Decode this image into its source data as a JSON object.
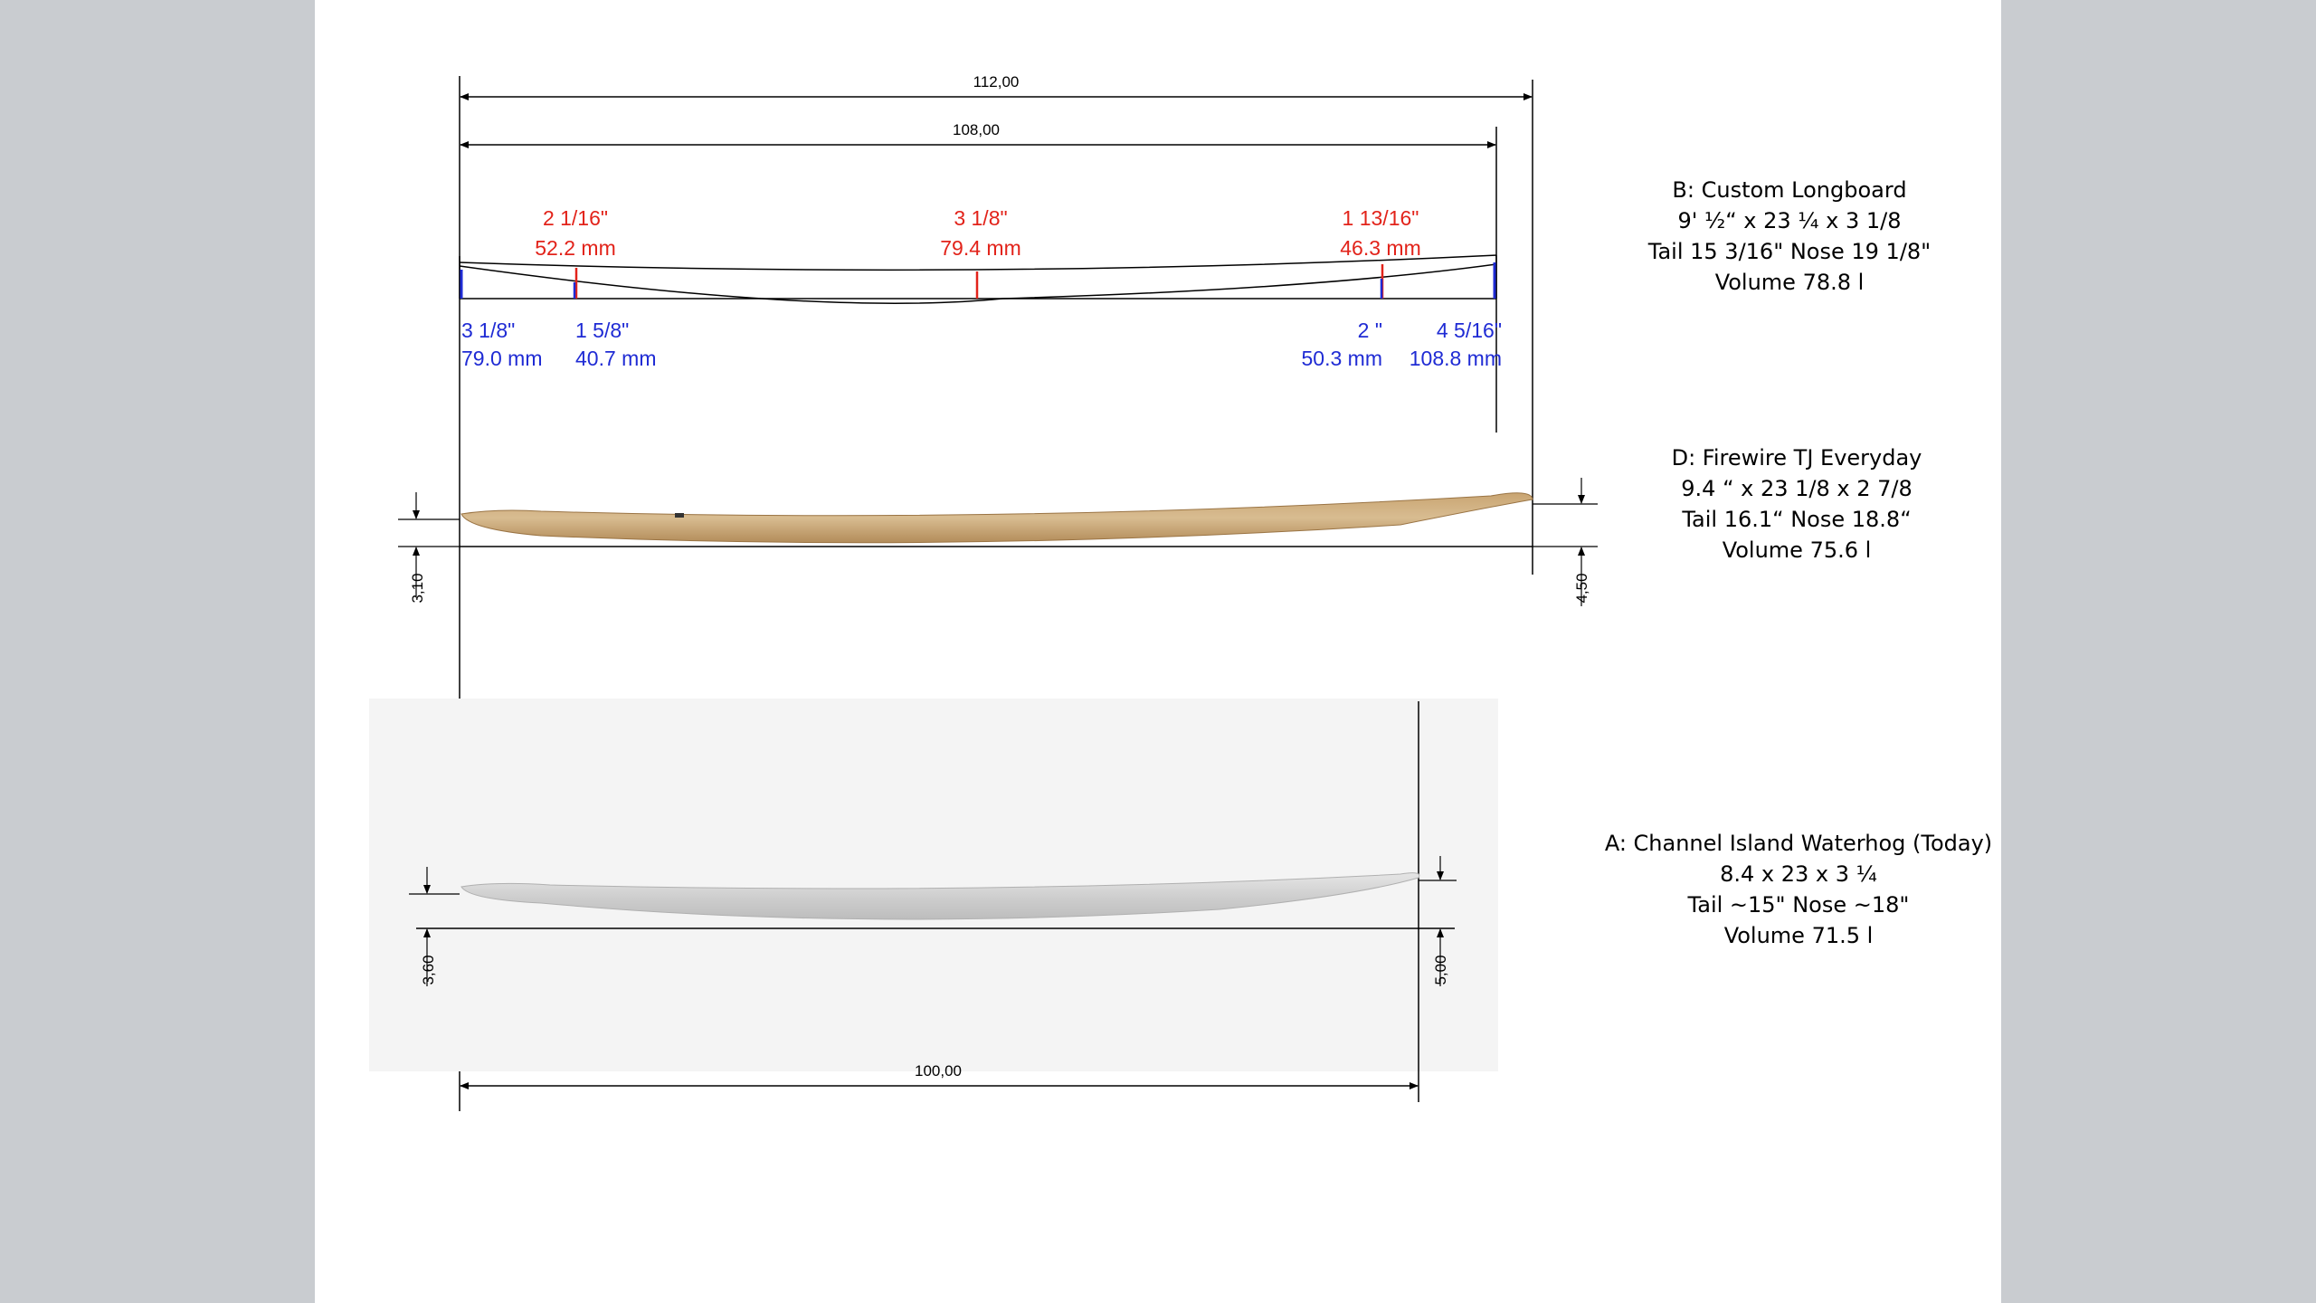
{
  "dimensions": {
    "overall_112": "112,00",
    "overall_108": "108,00",
    "length_100": "100,00",
    "rocker_d_tail": "3,10",
    "rocker_d_nose": "4,50",
    "rocker_a_tail": "3,60",
    "rocker_a_nose": "5,00"
  },
  "board_b": {
    "red_labels": [
      {
        "inch": "2 1/16\"",
        "mm": "52.2 mm"
      },
      {
        "inch": "3 1/8\"",
        "mm": "79.4 mm"
      },
      {
        "inch": "1 13/16\"",
        "mm": "46.3 mm"
      }
    ],
    "blue_labels": [
      {
        "inch": "3 1/8\"",
        "mm": "79.0 mm"
      },
      {
        "inch": "1 5/8\"",
        "mm": "40.7 mm"
      },
      {
        "inch": "2 \"",
        "mm": "50.3 mm"
      },
      {
        "inch": "4 5/16\"",
        "mm": "108.8 mm"
      }
    ],
    "spec": [
      "B: Custom Longboard",
      "9' ½“ x 23 ¼ x 3 1/8",
      "Tail 15 3/16\" Nose 19 1/8\"",
      "Volume 78.8 l"
    ]
  },
  "board_d": {
    "spec": [
      "D: Firewire TJ Everyday",
      "9.4 “ x 23 1/8 x 2 7/8",
      "Tail 16.1“ Nose 18.8“",
      "Volume 75.6 l"
    ],
    "color": "#c8a97c"
  },
  "board_a": {
    "spec": [
      "A: Channel Island Waterhog (Today)",
      "8.4 x 23 x 3 ¼",
      "Tail ~15\" Nose ~18\"",
      "Volume 71.5 l"
    ],
    "color": "#d4d4d4"
  },
  "colors": {
    "page_background": "#c9ccd0",
    "slide": "#ffffff",
    "red": "#e2231a",
    "blue": "#1f2bd4",
    "line": "#000000"
  }
}
